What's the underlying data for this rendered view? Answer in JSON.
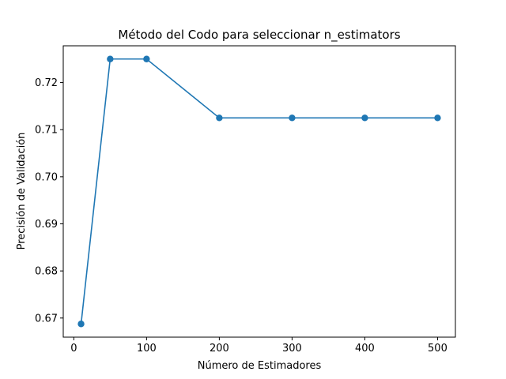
{
  "chart_data": {
    "type": "line",
    "title": "Método del Codo para seleccionar n_estimators",
    "xlabel": "Número de Estimadores",
    "ylabel": "Precisión de Validación",
    "x": [
      10,
      50,
      100,
      200,
      300,
      400,
      500
    ],
    "series": [
      {
        "values": [
          0.66875,
          0.725,
          0.725,
          0.7125,
          0.7125,
          0.7125,
          0.7125
        ],
        "color": "#1f77b4"
      }
    ],
    "xlim": [
      -14.5,
      524.5
    ],
    "ylim": [
      0.66594,
      0.72781
    ],
    "xticks": [
      0,
      100,
      200,
      300,
      400,
      500
    ],
    "yticks": [
      0.67,
      0.68,
      0.69,
      0.7,
      0.71,
      0.72
    ],
    "ytick_labels": [
      "0.67",
      "0.68",
      "0.69",
      "0.70",
      "0.71",
      "0.72"
    ],
    "grid": false,
    "marker": "circle"
  }
}
